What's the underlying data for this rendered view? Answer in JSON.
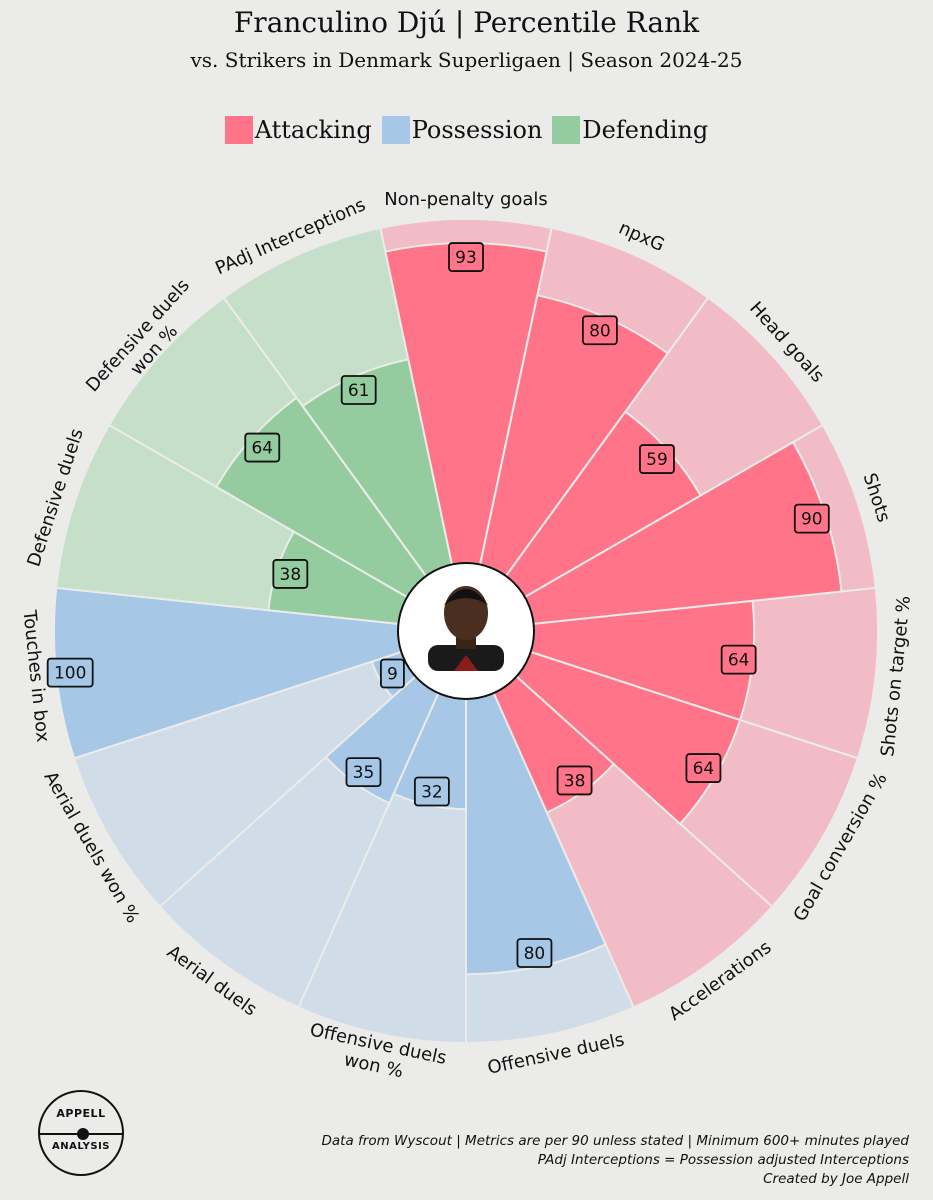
{
  "header": {
    "title": "Franculino Djú | Percentile Rank",
    "subtitle": "vs. Strikers in Denmark Superligaen | Season 2024-25"
  },
  "legend": [
    {
      "label": "Attacking",
      "color": "#ff7489"
    },
    {
      "label": "Possession",
      "color": "#a7c7e7"
    },
    {
      "label": "Defending",
      "color": "#95cc9f"
    }
  ],
  "chart_data": {
    "type": "pizza",
    "range": [
      0,
      100
    ],
    "group_colors": {
      "Attacking": {
        "fill": "#ff7489",
        "bg": "#f2bcc6"
      },
      "Possession": {
        "fill": "#a7c7e7",
        "bg": "#d0dce8"
      },
      "Defending": {
        "fill": "#95cc9f",
        "bg": "#c6dfc9"
      }
    },
    "metrics": [
      {
        "label": "Non-penalty goals",
        "value": 93,
        "group": "Attacking"
      },
      {
        "label": "npxG",
        "value": 80,
        "group": "Attacking"
      },
      {
        "label": "Head goals",
        "value": 59,
        "group": "Attacking"
      },
      {
        "label": "Shots",
        "value": 90,
        "group": "Attacking"
      },
      {
        "label": "Shots on target %",
        "value": 64,
        "group": "Attacking"
      },
      {
        "label": "Goal conversion %",
        "value": 64,
        "group": "Attacking"
      },
      {
        "label": "Accelerations",
        "value": 38,
        "group": "Attacking"
      },
      {
        "label": "Offensive duels",
        "value": 80,
        "group": "Possession"
      },
      {
        "label": "Offensive duels won %",
        "value": 32,
        "group": "Possession"
      },
      {
        "label": "Aerial duels",
        "value": 35,
        "group": "Possession"
      },
      {
        "label": "Aerial duels won %",
        "value": 9,
        "group": "Possession"
      },
      {
        "label": "Touches in box",
        "value": 100,
        "group": "Possession"
      },
      {
        "label": "Defensive duels",
        "value": 38,
        "group": "Defending"
      },
      {
        "label": "Defensive duels won %",
        "value": 64,
        "group": "Defending"
      },
      {
        "label": "PAdj Interceptions",
        "value": 61,
        "group": "Defending"
      }
    ]
  },
  "logo": {
    "line1": "APPELL",
    "line2": "ANALYSIS"
  },
  "footer": {
    "line1": "Data from Wyscout | Metrics are per 90 unless stated | Minimum 600+ minutes played",
    "line2": "PAdj Interceptions = Possession adjusted Interceptions",
    "line3": "Created by Joe Appell"
  }
}
